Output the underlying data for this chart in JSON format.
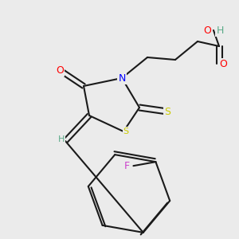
{
  "background_color": "#ebebeb",
  "bond_color": "#1a1a1a",
  "bond_width": 1.5,
  "atom_colors": {
    "O": "#ff0000",
    "N": "#0000ff",
    "S": "#cccc00",
    "F": "#cc44cc",
    "H_label": "#5aaa88",
    "C": "#1a1a1a"
  },
  "figsize": [
    3.0,
    3.0
  ],
  "dpi": 100
}
